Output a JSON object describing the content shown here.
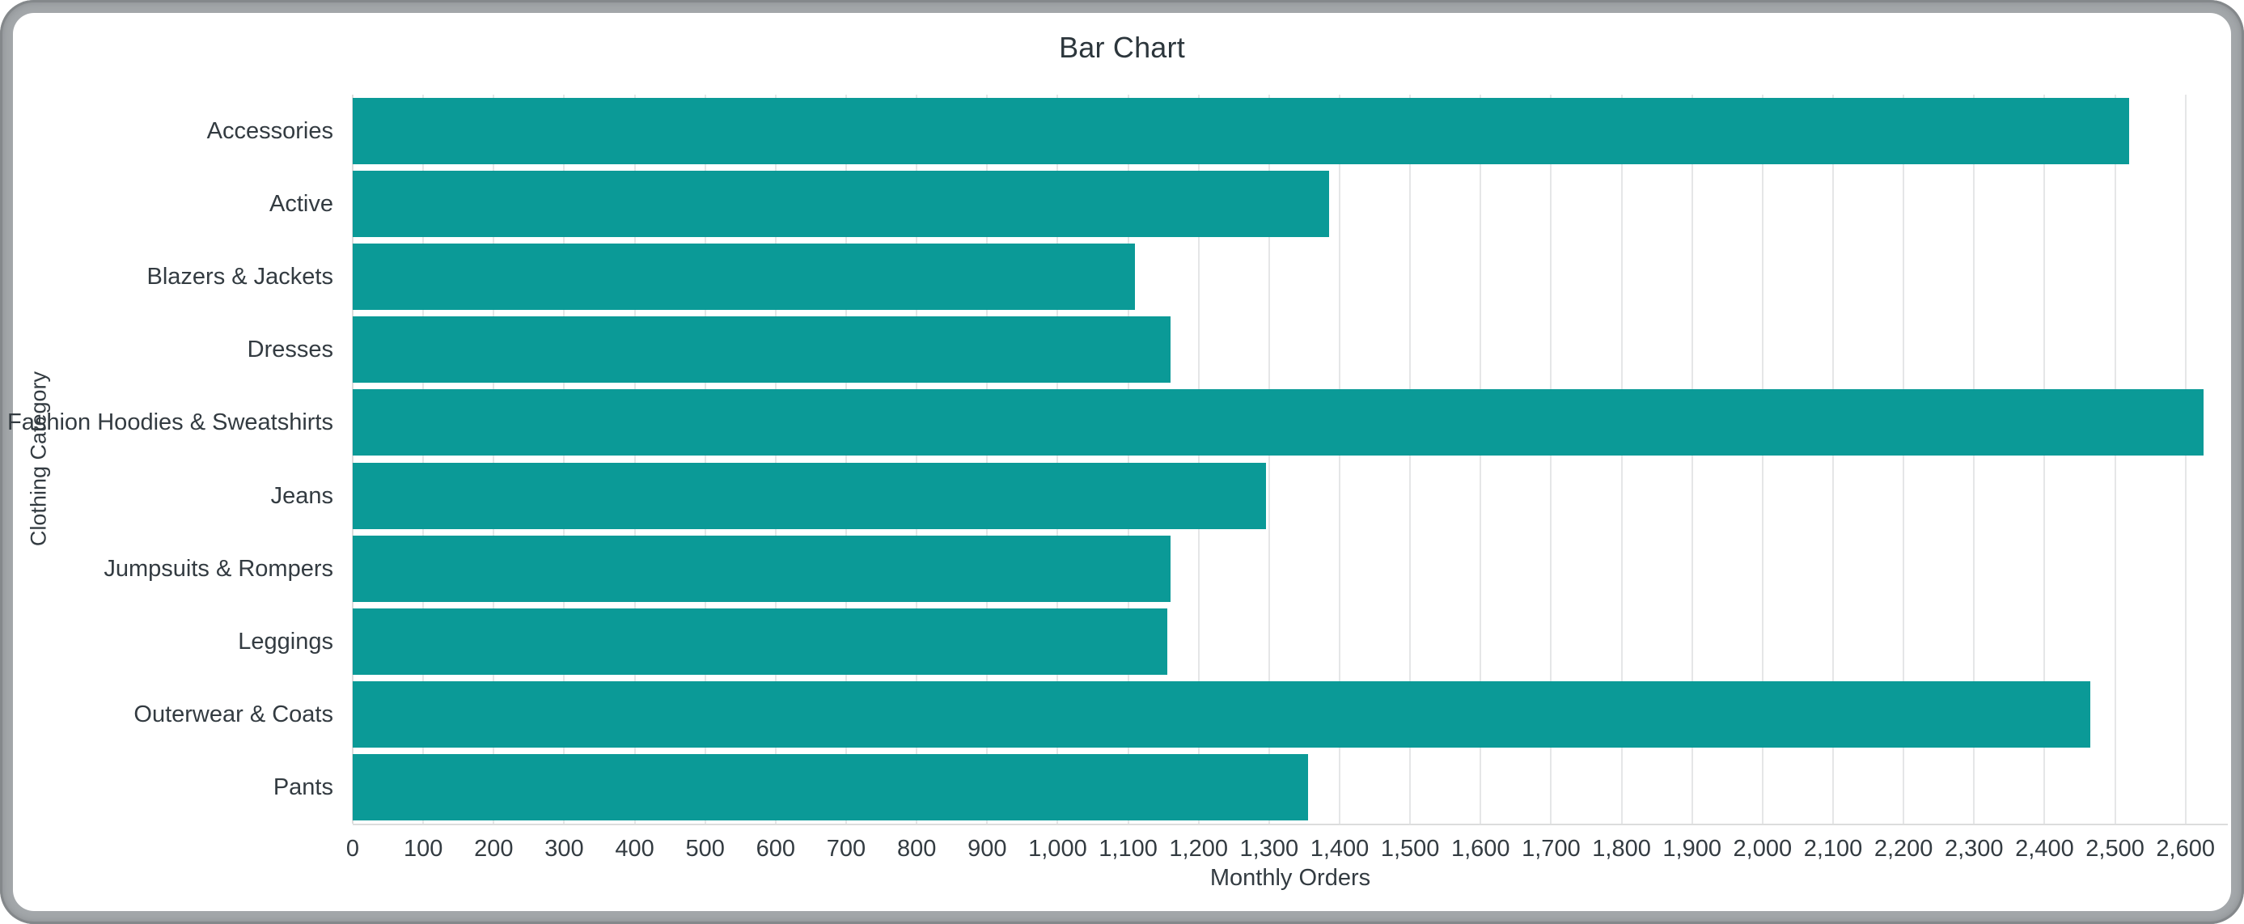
{
  "window": {
    "frame_color": "#a3a7aa",
    "frame_edge_color": "#84888b",
    "background": "#ffffff"
  },
  "chart_data": {
    "type": "bar",
    "orientation": "horizontal",
    "title": "Bar Chart",
    "xlabel": "Monthly Orders",
    "ylabel": "Clothing Category",
    "categories": [
      "Accessories",
      "Active",
      "Blazers & Jackets",
      "Dresses",
      "Fashion Hoodies & Sweatshirts",
      "Jeans",
      "Jumpsuits & Rompers",
      "Leggings",
      "Outerwear & Coats",
      "Pants"
    ],
    "values": [
      2520,
      1385,
      1110,
      1160,
      2625,
      1295,
      1160,
      1155,
      2465,
      1355
    ],
    "xlim": [
      0,
      2660
    ],
    "xticks": [
      0,
      100,
      200,
      300,
      400,
      500,
      600,
      700,
      800,
      900,
      1000,
      1100,
      1200,
      1300,
      1400,
      1500,
      1600,
      1700,
      1800,
      1900,
      2000,
      2100,
      2200,
      2300,
      2400,
      2500,
      2600
    ],
    "xtick_labels": [
      "0",
      "100",
      "200",
      "300",
      "400",
      "500",
      "600",
      "700",
      "800",
      "900",
      "1,000",
      "1,100",
      "1,200",
      "1,300",
      "1,400",
      "1,500",
      "1,600",
      "1,700",
      "1,800",
      "1,900",
      "2,000",
      "2,100",
      "2,200",
      "2,300",
      "2,400",
      "2,500",
      "2,600"
    ],
    "grid": true,
    "legend": false,
    "bar_color": "#0b9a97",
    "grid_color": "#e5e6e7",
    "axis_line_color": "#dcdddd",
    "title_color": "#2c363c",
    "label_color": "#333b41"
  }
}
